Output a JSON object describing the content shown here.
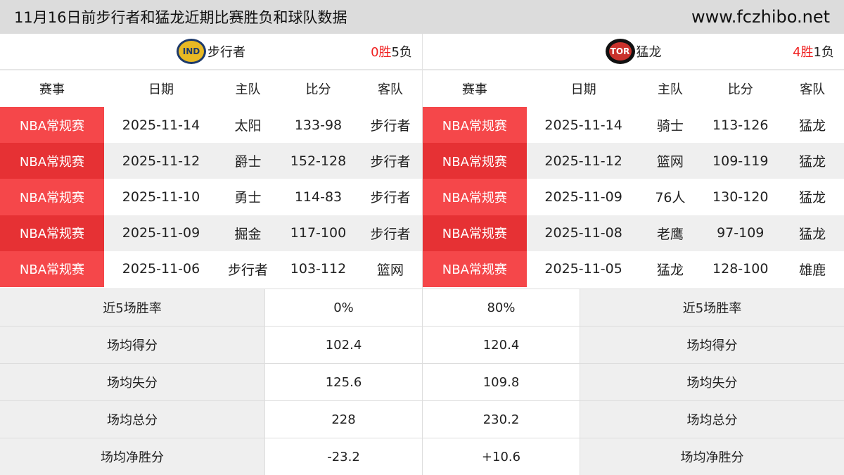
{
  "header": {
    "title": "11月16日前步行者和猛龙近期比赛胜负和球队数据",
    "site": "www.fczhibo.net"
  },
  "columns": [
    "赛事",
    "日期",
    "主队",
    "比分",
    "客队"
  ],
  "teams": [
    {
      "name": "步行者",
      "logo_text": "IND",
      "wins": "0",
      "win_label": "胜",
      "losses": "5",
      "loss_label": "负",
      "games": [
        [
          "NBA常规赛",
          "2025-11-14",
          "太阳",
          "133-98",
          "步行者"
        ],
        [
          "NBA常规赛",
          "2025-11-12",
          "爵士",
          "152-128",
          "步行者"
        ],
        [
          "NBA常规赛",
          "2025-11-10",
          "勇士",
          "114-83",
          "步行者"
        ],
        [
          "NBA常规赛",
          "2025-11-09",
          "掘金",
          "117-100",
          "步行者"
        ],
        [
          "NBA常规赛",
          "2025-11-06",
          "步行者",
          "103-112",
          "篮网"
        ]
      ]
    },
    {
      "name": "猛龙",
      "logo_text": "TOR",
      "wins": "4",
      "win_label": "胜",
      "losses": "1",
      "loss_label": "负",
      "games": [
        [
          "NBA常规赛",
          "2025-11-14",
          "骑士",
          "113-126",
          "猛龙"
        ],
        [
          "NBA常规赛",
          "2025-11-12",
          "篮网",
          "109-119",
          "猛龙"
        ],
        [
          "NBA常规赛",
          "2025-11-09",
          "76人",
          "130-120",
          "猛龙"
        ],
        [
          "NBA常规赛",
          "2025-11-08",
          "老鹰",
          "97-109",
          "猛龙"
        ],
        [
          "NBA常规赛",
          "2025-11-05",
          "猛龙",
          "128-100",
          "雄鹿"
        ]
      ]
    }
  ],
  "stats": [
    {
      "label": "近5场胜率",
      "left": "0%",
      "right": "80%"
    },
    {
      "label": "场均得分",
      "left": "102.4",
      "right": "120.4"
    },
    {
      "label": "场均失分",
      "left": "125.6",
      "right": "109.8"
    },
    {
      "label": "场均总分",
      "left": "228",
      "right": "230.2"
    },
    {
      "label": "场均净胜分",
      "left": "-23.2",
      "right": "+10.6"
    }
  ],
  "colors": {
    "accent_red": "#f5474a",
    "win_red": "#f02020"
  }
}
